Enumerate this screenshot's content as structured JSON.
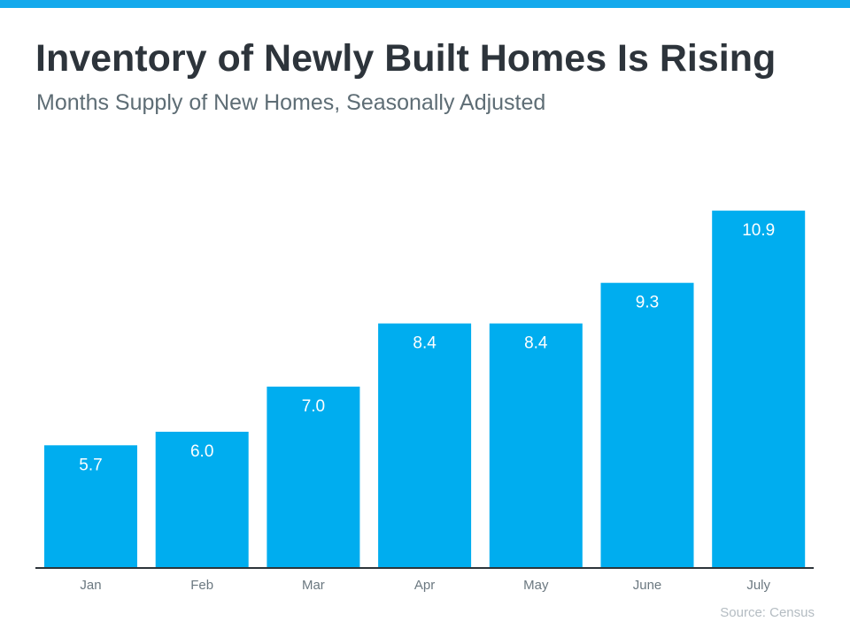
{
  "title": "Inventory of Newly Built Homes Is Rising",
  "subtitle": "Months Supply of New Homes, Seasonally Adjusted",
  "source": "Source: Census",
  "colors": {
    "accent": "#14a9ec",
    "bar": "#00adef",
    "title": "#2d343b",
    "subtitle": "#5e6d75",
    "axis": "#2d3439",
    "tick_label": "#6b7880",
    "source": "#b4bcc2"
  },
  "chart_data": {
    "type": "bar",
    "title": "Inventory of Newly Built Homes Is Rising",
    "subtitle": "Months Supply of New Homes, Seasonally Adjusted",
    "categories": [
      "Jan",
      "Feb",
      "Mar",
      "Apr",
      "May",
      "June",
      "July"
    ],
    "values": [
      5.7,
      6.0,
      7.0,
      8.4,
      8.4,
      9.3,
      10.9
    ],
    "labels": [
      "5.7",
      "6.0",
      "7.0",
      "8.4",
      "8.4",
      "9.3",
      "10.9"
    ],
    "xlabel": "",
    "ylabel": "",
    "ylim": [
      3,
      12
    ],
    "grid": false,
    "legend": "none"
  }
}
